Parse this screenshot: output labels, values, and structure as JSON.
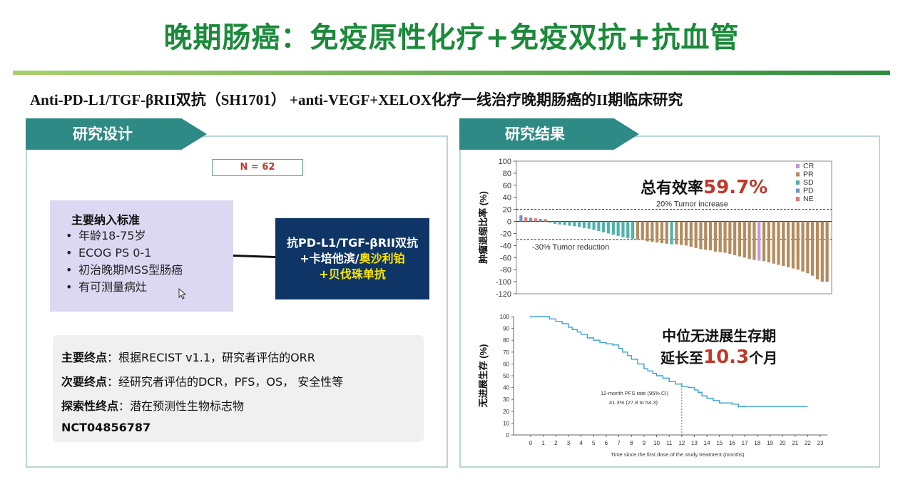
{
  "title": "晚期肠癌：免疫原性化疗+免疫双抗+抗血管",
  "subtitle": "Anti-PD-L1/TGF-βRII双抗（SH1701） +anti-VEGF+XELOX化疗一线治疗晚期肠癌的II期临床研究",
  "design": {
    "tab": "研究设计",
    "n_label": "N = 62",
    "inclusion_title": "主要纳入标准",
    "inclusion_items": [
      "年龄18-75岁",
      "ECOG PS 0-1",
      "初治晚期MSS型肠癌",
      "有可测量病灶"
    ],
    "drug_line1": "抗PD-L1/TGF-βRII双抗",
    "drug_line2a": "+卡培他滨/",
    "drug_line2b": "奥沙利铂",
    "drug_line3": "+贝伐珠单抗",
    "endpoints": [
      {
        "label": "主要终点",
        "text": "：根据RECIST v1.1，研究者评估的ORR"
      },
      {
        "label": "次要终点",
        "text": "：经研究者评估的DCR，PFS，OS， 安全性等"
      },
      {
        "label": "探索性终点",
        "text": "：潜在预测性生物标志物"
      }
    ],
    "nct": "NCT04856787"
  },
  "results": {
    "tab": "研究结果",
    "orr_label": "总有效率",
    "orr_value": "59.7%",
    "pfs_line1": "中位无进展生存期",
    "pfs_line2a": "延长至",
    "pfs_value": "10.3",
    "pfs_line2b": "个月"
  },
  "colors": {
    "green_title": "#1b8a3a",
    "tab_teal": "#2e8a84",
    "navy": "#0e3566",
    "highlight_red": "#c0392b",
    "CR": "#c39bd3",
    "PR": "#b58b5e",
    "SD": "#4fb3aa",
    "PD": "#6f93c9",
    "NE": "#e0796e",
    "km_line": "#3aa3d8"
  },
  "chart_data": [
    {
      "type": "bar",
      "ylabel": "肿瘤退缩比率 (%)",
      "ylim": [
        -120,
        100
      ],
      "yticks": [
        100,
        80,
        60,
        40,
        20,
        0,
        -20,
        -40,
        -60,
        -80,
        -100,
        -120
      ],
      "legend": [
        "CR",
        "PR",
        "SD",
        "PD",
        "NE"
      ],
      "legend_position": "top-right",
      "reference_lines": [
        {
          "y": 20,
          "label": "20% Tumor increase"
        },
        {
          "y": -30,
          "label": "-30% Tumor reduction"
        }
      ],
      "series": [
        {
          "values": [
            10,
            7,
            6,
            5,
            4,
            4
          ],
          "types": [
            "PD",
            "NE",
            "PD",
            "NE",
            "PD",
            "NE"
          ]
        },
        {
          "values": [
            -2,
            -4,
            -5,
            -6,
            -7,
            -8,
            -9,
            -11,
            -12,
            -14,
            -16,
            -18,
            -20,
            -22,
            -24,
            -26,
            -28,
            -29
          ],
          "types": [
            "SD",
            "SD",
            "SD",
            "SD",
            "SD",
            "SD",
            "SD",
            "SD",
            "SD",
            "SD",
            "SD",
            "SD",
            "SD",
            "SD",
            "SD",
            "SD",
            "SD",
            "SD"
          ]
        },
        {
          "values": [
            -30,
            -31,
            -33,
            -34,
            -35,
            -36,
            -37,
            -38,
            -38,
            -39,
            -40,
            -42,
            -44,
            -46,
            -47,
            -48,
            -50,
            -51,
            -52,
            -54,
            -56,
            -58,
            -60,
            -62,
            -64,
            -65,
            -66,
            -68,
            -70,
            -72,
            -74,
            -76,
            -78,
            -80,
            -83,
            -86,
            -90,
            -96,
            -100,
            -100
          ],
          "types": [
            "PR",
            "PR",
            "PR",
            "PR",
            "PR",
            "PR",
            "PR",
            "SD",
            "PR",
            "PR",
            "PR",
            "PR",
            "PR",
            "PR",
            "PR",
            "PR",
            "PR",
            "PR",
            "PR",
            "PR",
            "PR",
            "PR",
            "PR",
            "PR",
            "PR",
            "CR",
            "PR",
            "PR",
            "PR",
            "PR",
            "PR",
            "PR",
            "PR",
            "PR",
            "PR",
            "PR",
            "PR",
            "PR",
            "PR",
            "PR"
          ]
        }
      ]
    },
    {
      "type": "line",
      "ylabel": "无进展生存 (%)",
      "xlabel": "Time since the first dose of the study treatment (months)",
      "xlim": [
        0,
        23
      ],
      "ylim": [
        0,
        100
      ],
      "xticks": [
        0,
        1,
        2,
        3,
        4,
        5,
        6,
        7,
        8,
        9,
        10,
        11,
        12,
        13,
        14,
        15,
        16,
        17,
        18,
        19,
        20,
        21,
        22,
        23
      ],
      "yticks": [
        0,
        10,
        20,
        30,
        40,
        50,
        60,
        70,
        80,
        90,
        100
      ],
      "annotation_line1": "12-month PFS rate (95% CI)",
      "annotation_line2": "41.3% (27.8 to 54.3)",
      "reference_x": 12,
      "x": [
        0,
        1,
        1.5,
        2,
        2.5,
        3,
        3.3,
        3.7,
        4,
        4.5,
        5,
        5.5,
        6,
        6.5,
        7,
        7.3,
        7.7,
        8,
        8.5,
        9,
        9.3,
        9.7,
        10,
        10.5,
        11,
        11.5,
        12,
        12.5,
        13,
        13.3,
        13.6,
        14,
        14.5,
        15,
        15.5,
        16,
        16.5,
        17,
        18,
        19,
        20,
        21,
        22
      ],
      "y": [
        100,
        100,
        98,
        96,
        94,
        91,
        89,
        87,
        85,
        82,
        80,
        78,
        77,
        76,
        73,
        70,
        67,
        64,
        60,
        56,
        54,
        52,
        50,
        48,
        45,
        43,
        41,
        40,
        38,
        36,
        33,
        31,
        29,
        27,
        27,
        26,
        24,
        24,
        24,
        24,
        24,
        24,
        24
      ]
    }
  ]
}
